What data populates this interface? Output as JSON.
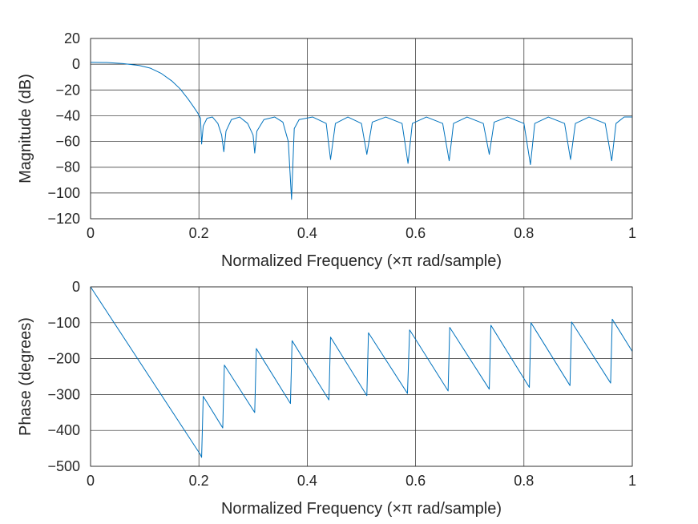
{
  "series_color": "#0072BD",
  "chart_data": [
    {
      "type": "line",
      "title": "",
      "xlabel": "Normalized Frequency  (×π rad/sample)",
      "ylabel": "Magnitude (dB)",
      "xlim": [
        0,
        1
      ],
      "ylim": [
        -120,
        20
      ],
      "xticks": [
        0,
        0.2,
        0.4,
        0.6,
        0.8,
        1
      ],
      "xticklabels": [
        "0",
        "0.2",
        "0.4",
        "0.6",
        "0.8",
        "1"
      ],
      "yticks": [
        20,
        0,
        -20,
        -40,
        -60,
        -80,
        -100,
        -120
      ],
      "yticklabels": [
        "20",
        "0",
        "−20",
        "−40",
        "−60",
        "−80",
        "−100",
        "−120"
      ],
      "grid": true,
      "series": [
        {
          "x": [
            0,
            0.03,
            0.06,
            0.09,
            0.11,
            0.13,
            0.15,
            0.165,
            0.18,
            0.19,
            0.198,
            0.203,
            0.205,
            0.208,
            0.215,
            0.225,
            0.235,
            0.242,
            0.246,
            0.25,
            0.26,
            0.275,
            0.29,
            0.3,
            0.303,
            0.307,
            0.32,
            0.34,
            0.355,
            0.365,
            0.371,
            0.376,
            0.385,
            0.41,
            0.435,
            0.443,
            0.452,
            0.475,
            0.5,
            0.51,
            0.52,
            0.545,
            0.575,
            0.586,
            0.594,
            0.62,
            0.65,
            0.662,
            0.67,
            0.695,
            0.725,
            0.736,
            0.745,
            0.77,
            0.8,
            0.812,
            0.82,
            0.845,
            0.875,
            0.886,
            0.895,
            0.92,
            0.95,
            0.962,
            0.97,
            0.985,
            1.0
          ],
          "y": [
            1.5,
            1.3,
            0.5,
            -1,
            -3,
            -7,
            -13,
            -19,
            -27,
            -33,
            -38,
            -42,
            -62,
            -48,
            -42,
            -41,
            -46,
            -55,
            -68,
            -52,
            -43,
            -41,
            -46,
            -55,
            -69,
            -52,
            -43,
            -41,
            -45,
            -60,
            -105,
            -50,
            -43,
            -41,
            -46,
            -74,
            -46,
            -41,
            -46,
            -70,
            -45,
            -41,
            -46,
            -77,
            -46,
            -41,
            -46,
            -75,
            -46,
            -41,
            -46,
            -70,
            -45,
            -41,
            -46,
            -78,
            -46,
            -41,
            -46,
            -74,
            -46,
            -41,
            -46,
            -75,
            -46,
            -41,
            -41
          ]
        }
      ]
    },
    {
      "type": "line",
      "title": "",
      "xlabel": "Normalized Frequency  (×π rad/sample)",
      "ylabel": "Phase (degrees)",
      "xlim": [
        0,
        1
      ],
      "ylim": [
        -500,
        0
      ],
      "xticks": [
        0,
        0.2,
        0.4,
        0.6,
        0.8,
        1
      ],
      "xticklabels": [
        "0",
        "0.2",
        "0.4",
        "0.6",
        "0.8",
        "1"
      ],
      "yticks": [
        0,
        -100,
        -200,
        -300,
        -400,
        -500
      ],
      "yticklabels": [
        "0",
        "−100",
        "−200",
        "−300",
        "−400",
        "−500"
      ],
      "grid": true,
      "series": [
        {
          "x": [
            0,
            0.203,
            0.205,
            0.208,
            0.244,
            0.247,
            0.303,
            0.306,
            0.369,
            0.372,
            0.44,
            0.443,
            0.51,
            0.513,
            0.585,
            0.589,
            0.66,
            0.663,
            0.736,
            0.739,
            0.81,
            0.813,
            0.885,
            0.888,
            0.96,
            0.963,
            1.0
          ],
          "y": [
            0,
            -468,
            -475,
            -305,
            -393,
            -218,
            -350,
            -172,
            -325,
            -150,
            -315,
            -140,
            -303,
            -128,
            -297,
            -120,
            -290,
            -113,
            -285,
            -107,
            -280,
            -100,
            -275,
            -98,
            -268,
            -90,
            -180
          ]
        }
      ]
    }
  ]
}
